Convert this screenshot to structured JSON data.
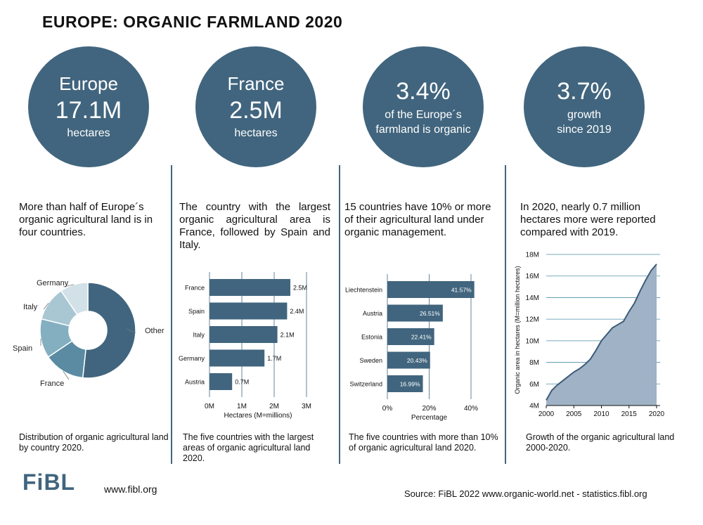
{
  "title": "EUROPE: ORGANIC FARMLAND 2020",
  "stats": [
    {
      "l1": "Europe",
      "l2": "17.1M",
      "l3": "hectares"
    },
    {
      "l1": "France",
      "l2": "2.5M",
      "l3": "hectares"
    },
    {
      "l1": "3.4%",
      "l2": "of the Europe´s",
      "l3": "farmland is organic"
    },
    {
      "l1": "3.7%",
      "l2": "growth",
      "l3": "since 2019"
    }
  ],
  "descriptions": [
    "More than half of Europe´s organic agricultural land is in four countries.",
    "The country with the largest organic agricultural area is France, followed by Spain and Italy.",
    "15 countries have 10% or more of their agricultural land under organic management.",
    "In 2020, nearly 0.7 million hectares more were reported compared with 2019."
  ],
  "captions": [
    "Distribution of organic agricultural land by country 2020.",
    "The five countries with the largest areas of organic agricultural land 2020.",
    "The five countries with more than 10% of organic agricultural land 2020.",
    "Growth of the organic agricultural land 2000-2020."
  ],
  "footer": {
    "logo": "FiBL",
    "url": "www.fibl.org",
    "source": "Source: FiBL 2022 www.organic-world.net - statistics.fibl.org"
  },
  "colors": {
    "accent": "#41657e"
  },
  "chart_data": [
    {
      "type": "pie",
      "slices": [
        {
          "label": "Other",
          "value": 54.5,
          "color": "#41657e"
        },
        {
          "label": "France",
          "value": 14.6,
          "color": "#5a8ba3"
        },
        {
          "label": "Spain",
          "value": 14.0,
          "color": "#84afc0"
        },
        {
          "label": "Italy",
          "value": 12.3,
          "color": "#a8c7d3"
        },
        {
          "label": "Germany",
          "value": 10.0,
          "color": "#d2e1e7"
        }
      ]
    },
    {
      "type": "bar",
      "orientation": "horizontal",
      "categories": [
        "France",
        "Spain",
        "Italy",
        "Germany",
        "Austria"
      ],
      "values": [
        2.5,
        2.4,
        2.1,
        1.7,
        0.7
      ],
      "value_labels": [
        "2.5M",
        "2.4M",
        "2.1M",
        "1.7M",
        "0.7M"
      ],
      "xlabel": "Hectares (M=millions)",
      "xticks": [
        "0M",
        "1M",
        "2M",
        "3M"
      ],
      "xlim": [
        0,
        3
      ]
    },
    {
      "type": "bar",
      "orientation": "horizontal",
      "categories": [
        "Liechtenstein",
        "Austria",
        "Estonia",
        "Sweden",
        "Switzerland"
      ],
      "values": [
        41.57,
        26.51,
        22.41,
        20.43,
        16.99
      ],
      "value_labels": [
        "41.57%",
        "26.51%",
        "22.41%",
        "20.43%",
        "16.99%"
      ],
      "xlabel": "Percentage",
      "xticks": [
        "0%",
        "20%",
        "40%"
      ],
      "xlim": [
        0,
        40
      ]
    },
    {
      "type": "area",
      "x": [
        2000,
        2001,
        2002,
        2003,
        2004,
        2005,
        2006,
        2007,
        2008,
        2009,
        2010,
        2011,
        2012,
        2013,
        2014,
        2015,
        2016,
        2017,
        2018,
        2019,
        2020
      ],
      "y": [
        4.5,
        5.4,
        5.9,
        6.3,
        6.7,
        7.1,
        7.4,
        7.8,
        8.3,
        9.1,
        10.0,
        10.6,
        11.2,
        11.5,
        11.8,
        12.7,
        13.5,
        14.6,
        15.6,
        16.5,
        17.1
      ],
      "ylabel": "Organic area in hectares (M=million hectares)",
      "yticks": [
        "4M",
        "6M",
        "8M",
        "10M",
        "12M",
        "14M",
        "16M",
        "18M"
      ],
      "xticks": [
        "2000",
        "2005",
        "2010",
        "2015",
        "2020"
      ],
      "ylim": [
        4,
        18
      ],
      "xlim": [
        2000,
        2020
      ]
    }
  ]
}
